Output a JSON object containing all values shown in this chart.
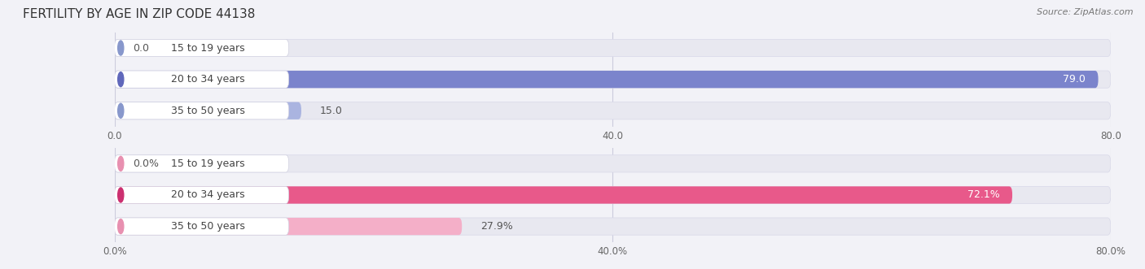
{
  "title": "FERTILITY BY AGE IN ZIP CODE 44138",
  "source": "Source: ZipAtlas.com",
  "top_chart": {
    "categories": [
      "15 to 19 years",
      "20 to 34 years",
      "35 to 50 years"
    ],
    "values": [
      0.0,
      79.0,
      15.0
    ],
    "value_labels": [
      "0.0",
      "79.0",
      "15.0"
    ],
    "bar_colors": [
      "#aab4e0",
      "#7b84cc",
      "#aab4e0"
    ],
    "bar_dark_colors": [
      "#8898cc",
      "#6068bb",
      "#8898cc"
    ],
    "xlim": [
      0,
      80.0
    ],
    "xticks": [
      0.0,
      40.0,
      80.0
    ],
    "xtick_labels": [
      "0.0",
      "40.0",
      "80.0"
    ]
  },
  "bottom_chart": {
    "categories": [
      "15 to 19 years",
      "20 to 34 years",
      "35 to 50 years"
    ],
    "values": [
      0.0,
      72.1,
      27.9
    ],
    "value_labels": [
      "0.0%",
      "72.1%",
      "27.9%"
    ],
    "bar_colors": [
      "#f4afc8",
      "#e8598a",
      "#f4afc8"
    ],
    "bar_dark_colors": [
      "#e890b0",
      "#cc3070",
      "#e890b0"
    ],
    "xlim": [
      0,
      80.0
    ],
    "xticks": [
      0.0,
      40.0,
      80.0
    ],
    "xtick_labels": [
      "0.0%",
      "40.0%",
      "80.0%"
    ]
  },
  "bg_color": "#f2f2f7",
  "bar_bg_color": "#e8e8f0",
  "pill_bg_color": "#ffffff",
  "bar_height": 0.55,
  "label_fontsize": 9,
  "title_fontsize": 11,
  "tick_fontsize": 8.5,
  "category_fontsize": 9,
  "category_text_color": "#444444"
}
